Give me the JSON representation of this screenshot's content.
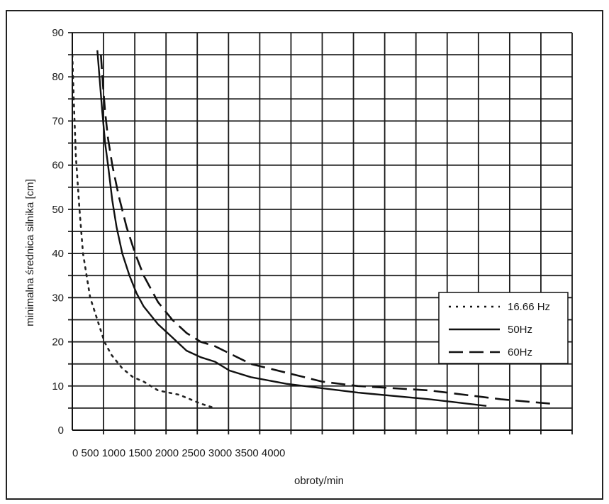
{
  "chart_data": {
    "type": "line",
    "xlabel": "obroty/min",
    "ylabel": "minimalna średnica silnika [cm]",
    "ylim": [
      0,
      90
    ],
    "y_ticks": [
      "0",
      "10",
      "20",
      "30",
      "40",
      "50",
      "60",
      "70",
      "80",
      "90"
    ],
    "x_tick_label": "0 500 1000 1500 2000 2500 3000 3500 4000",
    "grid": true,
    "legend_position": "right",
    "series": [
      {
        "name": "16.66 Hz",
        "style": "dotted",
        "points": [
          [
            0,
            85
          ],
          [
            20,
            75
          ],
          [
            50,
            62
          ],
          [
            100,
            50
          ],
          [
            150,
            40
          ],
          [
            250,
            30
          ],
          [
            350,
            25
          ],
          [
            450,
            20
          ],
          [
            550,
            17
          ],
          [
            700,
            14
          ],
          [
            850,
            12
          ],
          [
            1000,
            11
          ],
          [
            1200,
            9
          ],
          [
            1500,
            8
          ],
          [
            1800,
            6
          ],
          [
            2000,
            5
          ]
        ]
      },
      {
        "name": "50Hz",
        "style": "solid",
        "points": [
          [
            350,
            86
          ],
          [
            380,
            80
          ],
          [
            420,
            72
          ],
          [
            460,
            65
          ],
          [
            500,
            60
          ],
          [
            560,
            52
          ],
          [
            620,
            46
          ],
          [
            700,
            40
          ],
          [
            800,
            35
          ],
          [
            900,
            31
          ],
          [
            1000,
            28
          ],
          [
            1200,
            24
          ],
          [
            1400,
            21
          ],
          [
            1600,
            18
          ],
          [
            1800,
            16.5
          ],
          [
            2000,
            15.5
          ],
          [
            2200,
            13.5
          ],
          [
            2500,
            12
          ],
          [
            3000,
            10.5
          ],
          [
            3500,
            9.5
          ],
          [
            4000,
            8.5
          ],
          [
            5000,
            7
          ],
          [
            5800,
            5.5
          ]
        ]
      },
      {
        "name": "60Hz",
        "style": "dashed",
        "points": [
          [
            400,
            85
          ],
          [
            430,
            78
          ],
          [
            460,
            72
          ],
          [
            500,
            66
          ],
          [
            560,
            60
          ],
          [
            650,
            53
          ],
          [
            760,
            46
          ],
          [
            880,
            40
          ],
          [
            1000,
            35
          ],
          [
            1200,
            29
          ],
          [
            1400,
            25
          ],
          [
            1600,
            22
          ],
          [
            1800,
            20
          ],
          [
            2000,
            19
          ],
          [
            2500,
            15
          ],
          [
            3000,
            13
          ],
          [
            3500,
            11
          ],
          [
            4000,
            10
          ],
          [
            5000,
            9
          ],
          [
            6000,
            7
          ],
          [
            6700,
            6
          ]
        ]
      }
    ]
  }
}
